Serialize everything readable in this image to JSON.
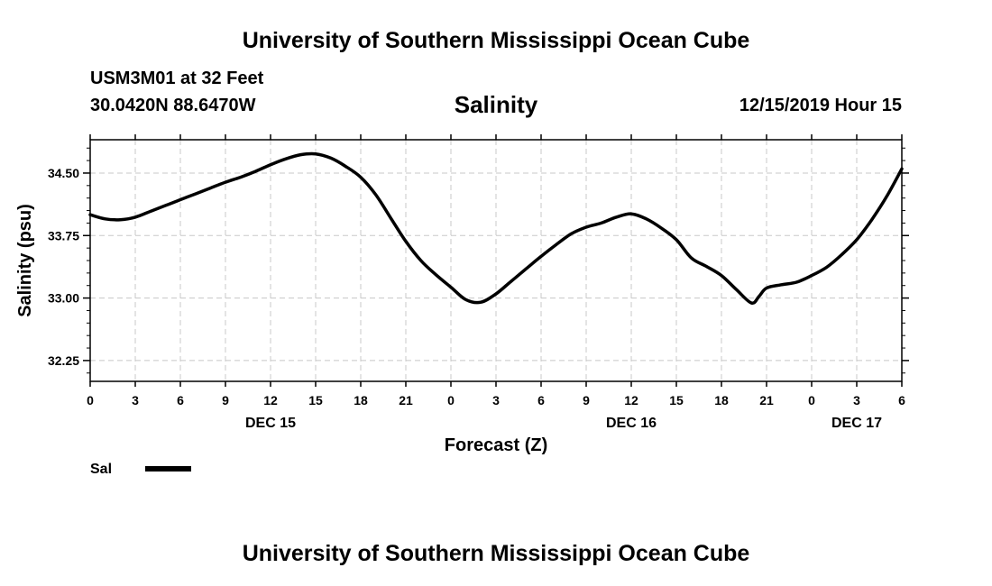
{
  "header": {
    "title": "University of Southern Mississippi Ocean Cube",
    "station": "USM3M01 at 32 Feet",
    "coordinates": "30.0420N 88.6470W",
    "datetime": "12/15/2019 Hour 15"
  },
  "footer": {
    "title": "University of Southern Mississippi Ocean Cube"
  },
  "chart_data": {
    "type": "line",
    "title": "Salinity",
    "xlabel": "Forecast (Z)",
    "ylabel": "Salinity (psu)",
    "xlim": [
      0,
      54
    ],
    "ylim": [
      32.0,
      34.9
    ],
    "x_ticks": [
      0,
      3,
      6,
      9,
      12,
      15,
      18,
      21,
      24,
      27,
      30,
      33,
      36,
      39,
      42,
      45,
      48,
      51,
      54
    ],
    "x_tick_labels": [
      "0",
      "3",
      "6",
      "9",
      "12",
      "15",
      "18",
      "21",
      "0",
      "3",
      "6",
      "9",
      "12",
      "15",
      "18",
      "21",
      "0",
      "3",
      "6"
    ],
    "y_ticks": [
      32.25,
      33.0,
      33.75,
      34.5
    ],
    "y_tick_labels": [
      "32.25",
      "33.00",
      "33.75",
      "34.50"
    ],
    "day_labels": [
      {
        "x": 12,
        "label": "DEC 15"
      },
      {
        "x": 36,
        "label": "DEC 16"
      },
      {
        "x": 51,
        "label": "DEC 17"
      }
    ],
    "grid": true,
    "legend_position": "bottom-left",
    "series": [
      {
        "name": "Sal",
        "color": "#000000",
        "x": [
          0,
          1,
          2,
          3,
          4,
          5,
          6,
          7,
          8,
          9,
          10,
          11,
          12,
          13,
          14,
          15,
          16,
          17,
          18,
          19,
          20,
          21,
          22,
          23,
          24,
          25,
          26,
          27,
          28,
          29,
          30,
          31,
          32,
          33,
          34,
          35,
          36,
          37,
          38,
          39,
          40,
          41,
          42,
          43,
          44,
          44.5,
          45,
          46,
          47,
          48,
          49,
          50,
          51,
          52,
          53,
          54
        ],
        "y": [
          34.0,
          33.95,
          33.94,
          33.97,
          34.04,
          34.11,
          34.18,
          34.25,
          34.32,
          34.39,
          34.45,
          34.52,
          34.6,
          34.67,
          34.72,
          34.73,
          34.68,
          34.58,
          34.45,
          34.24,
          33.96,
          33.68,
          33.45,
          33.28,
          33.13,
          32.98,
          32.95,
          33.05,
          33.2,
          33.35,
          33.5,
          33.64,
          33.77,
          33.85,
          33.9,
          33.97,
          34.01,
          33.95,
          33.84,
          33.7,
          33.48,
          33.38,
          33.27,
          33.1,
          32.94,
          33.02,
          33.12,
          33.16,
          33.19,
          33.27,
          33.37,
          33.52,
          33.7,
          33.94,
          34.22,
          34.55
        ]
      }
    ]
  }
}
